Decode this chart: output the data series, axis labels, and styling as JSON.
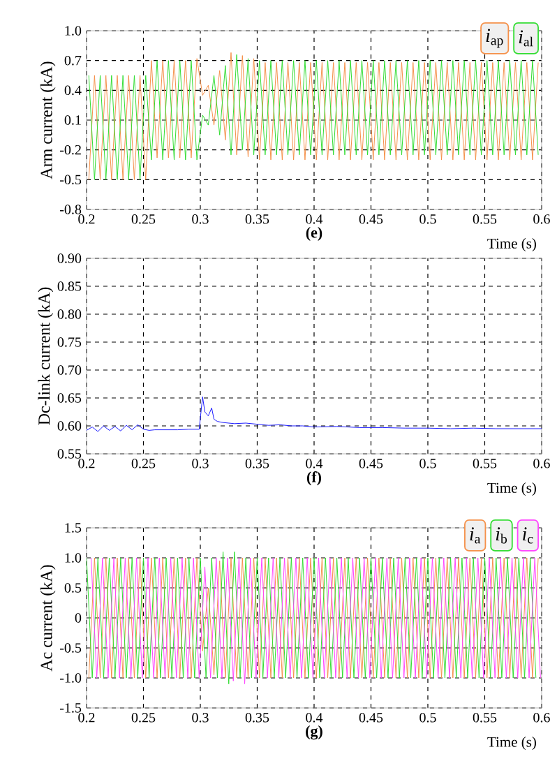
{
  "chart_data": [
    {
      "type": "line",
      "title": "(e)",
      "xlabel": "Time (s)",
      "ylabel": "Arm current (kA)",
      "grid": true,
      "legend": "top right",
      "xlim": [
        0.2,
        0.6
      ],
      "ylim": [
        -0.8,
        1.0
      ],
      "xticks": [
        0.2,
        0.25,
        0.3,
        0.35,
        0.4,
        0.45,
        0.5,
        0.55,
        0.6
      ],
      "yticks": [
        -0.8,
        -0.5,
        -0.2,
        0.1,
        0.4,
        0.7,
        {
          "value": 1.0,
          "label": "1.0"
        }
      ],
      "x": [
        0.202,
        0.207,
        0.212,
        0.217,
        0.222,
        0.227,
        0.232,
        0.237,
        0.242,
        0.247,
        0.252,
        0.257,
        0.262,
        0.267,
        0.272,
        0.277,
        0.282,
        0.287,
        0.292,
        0.297,
        0.302,
        0.307,
        0.312,
        0.317,
        0.322,
        0.327,
        0.332,
        0.337,
        0.342,
        0.347,
        0.352,
        0.357,
        0.362,
        0.367,
        0.372,
        0.377,
        0.382,
        0.387,
        0.392,
        0.397,
        0.402,
        0.407,
        0.412,
        0.417,
        0.422,
        0.427,
        0.432,
        0.437,
        0.442,
        0.447,
        0.452,
        0.457,
        0.462,
        0.467,
        0.472,
        0.477,
        0.482,
        0.487,
        0.492,
        0.497,
        0.502,
        0.507,
        0.512,
        0.517,
        0.522,
        0.527,
        0.532,
        0.537,
        0.542,
        0.547,
        0.552,
        0.557,
        0.562,
        0.567,
        0.572,
        0.577,
        0.582,
        0.587,
        0.592,
        0.597
      ],
      "series": [
        {
          "name": "*i*$_{ap}$",
          "color": "#f5914a",
          "values": [
            -0.5,
            0.55,
            -0.5,
            0.55,
            -0.5,
            0.55,
            -0.5,
            0.55,
            -0.5,
            0.55,
            -0.5,
            0.7,
            -0.28,
            0.7,
            -0.28,
            0.7,
            -0.28,
            0.7,
            -0.28,
            0.72,
            0.35,
            0.45,
            0.05,
            0.6,
            -0.1,
            0.78,
            -0.25,
            0.75,
            -0.27,
            0.72,
            -0.3,
            0.68,
            -0.3,
            0.68,
            -0.3,
            0.68,
            -0.3,
            0.68,
            -0.3,
            0.68,
            -0.3,
            0.68,
            -0.3,
            0.68,
            -0.3,
            0.68,
            -0.3,
            0.68,
            -0.3,
            0.68,
            -0.3,
            0.68,
            -0.3,
            0.68,
            -0.3,
            0.68,
            -0.3,
            0.68,
            -0.3,
            0.68,
            -0.3,
            0.68,
            -0.3,
            0.68,
            -0.3,
            0.68,
            -0.3,
            0.68,
            -0.3,
            0.68,
            -0.3,
            0.68,
            -0.3,
            0.68,
            -0.3,
            0.68,
            -0.3,
            0.68,
            -0.3,
            0.68
          ]
        },
        {
          "name": "*i*$_{al}$",
          "color": "#33dd33",
          "values": [
            0.55,
            -0.5,
            0.55,
            -0.5,
            0.55,
            -0.5,
            0.55,
            -0.5,
            0.55,
            -0.5,
            0.55,
            -0.3,
            0.7,
            -0.3,
            0.7,
            -0.3,
            0.7,
            -0.3,
            0.7,
            -0.3,
            0.15,
            0.05,
            0.55,
            -0.05,
            0.65,
            -0.25,
            0.76,
            -0.2,
            0.72,
            -0.25,
            0.7,
            -0.25,
            0.7,
            -0.25,
            0.7,
            -0.25,
            0.7,
            -0.25,
            0.7,
            -0.25,
            0.7,
            -0.25,
            0.7,
            -0.25,
            0.7,
            -0.25,
            0.7,
            -0.25,
            0.7,
            -0.25,
            0.7,
            -0.25,
            0.7,
            -0.25,
            0.7,
            -0.25,
            0.7,
            -0.25,
            0.7,
            -0.25,
            0.7,
            -0.25,
            0.7,
            -0.25,
            0.7,
            -0.25,
            0.7,
            -0.25,
            0.7,
            -0.25,
            0.7,
            -0.25,
            0.7,
            -0.25,
            0.7,
            -0.25,
            0.7,
            -0.25,
            0.7,
            -0.25
          ]
        }
      ]
    },
    {
      "type": "line",
      "title": "(f)",
      "xlabel": "Time (s)",
      "ylabel": "Dc-link current (kA)",
      "grid": true,
      "xlim": [
        0.2,
        0.6
      ],
      "ylim": [
        0.55,
        0.9
      ],
      "xticks": [
        0.2,
        0.25,
        0.3,
        0.35,
        0.4,
        0.45,
        0.5,
        0.55,
        0.6
      ],
      "yticks": [
        0.55,
        {
          "value": 0.6,
          "label": "0.60"
        },
        0.65,
        {
          "value": 0.7,
          "label": "0.70"
        },
        0.75,
        {
          "value": 0.8,
          "label": "0.80"
        },
        0.85,
        {
          "value": 0.9,
          "label": "0.90"
        }
      ],
      "series": [
        {
          "color": "#1a1aff",
          "x": [
            0.2,
            0.205,
            0.21,
            0.215,
            0.22,
            0.225,
            0.23,
            0.235,
            0.24,
            0.245,
            0.25,
            0.255,
            0.26,
            0.27,
            0.28,
            0.29,
            0.299,
            0.302,
            0.304,
            0.307,
            0.31,
            0.312,
            0.315,
            0.32,
            0.33,
            0.34,
            0.35,
            0.36,
            0.37,
            0.38,
            0.39,
            0.4,
            0.42,
            0.44,
            0.46,
            0.48,
            0.5,
            0.52,
            0.54,
            0.56,
            0.58,
            0.6
          ],
          "values": [
            0.592,
            0.598,
            0.59,
            0.6,
            0.592,
            0.599,
            0.591,
            0.601,
            0.593,
            0.602,
            0.594,
            0.592,
            0.593,
            0.593,
            0.593,
            0.594,
            0.594,
            0.652,
            0.625,
            0.618,
            0.632,
            0.612,
            0.608,
            0.606,
            0.604,
            0.605,
            0.603,
            0.601,
            0.602,
            0.6,
            0.6,
            0.598,
            0.599,
            0.597,
            0.597,
            0.596,
            0.596,
            0.595,
            0.596,
            0.595,
            0.595,
            0.595
          ]
        }
      ]
    },
    {
      "type": "line",
      "title": "(g)",
      "xlabel": "Time (s)",
      "ylabel": "Ac current (kA)",
      "grid": true,
      "legend": "top right",
      "xlim": [
        0.2,
        0.6
      ],
      "ylim": [
        -1.5,
        1.5
      ],
      "xticks": [
        0.2,
        0.25,
        0.3,
        0.35,
        0.4,
        0.45,
        0.5,
        0.55,
        0.6
      ],
      "yticks": [
        -1.5,
        {
          "value": -1.0,
          "label": "-1.0"
        },
        -0.5,
        0,
        0.5,
        {
          "value": 1.0,
          "label": "1.0"
        },
        1.5
      ],
      "series": [
        {
          "name": "*i*$_{a}$",
          "color": "#f5914a",
          "x": [
            0.202,
            0.207,
            0.212,
            0.217,
            0.222,
            0.227,
            0.232,
            0.237,
            0.242,
            0.247,
            0.252,
            0.257,
            0.262,
            0.267,
            0.272,
            0.277,
            0.282,
            0.287,
            0.292,
            0.297,
            0.302,
            0.307,
            0.312,
            0.317,
            0.322,
            0.327,
            0.332,
            0.337,
            0.342,
            0.347,
            0.352,
            0.357,
            0.362,
            0.367,
            0.372,
            0.377,
            0.382,
            0.387,
            0.392,
            0.397,
            0.402,
            0.407,
            0.412,
            0.417,
            0.422,
            0.427,
            0.432,
            0.437,
            0.442,
            0.447,
            0.452,
            0.457,
            0.462,
            0.467,
            0.472,
            0.477,
            0.482,
            0.487,
            0.492,
            0.497,
            0.502,
            0.507,
            0.512,
            0.517,
            0.522,
            0.527,
            0.532,
            0.537,
            0.542,
            0.547,
            0.552,
            0.557,
            0.562,
            0.567,
            0.572,
            0.577,
            0.582,
            0.587,
            0.592,
            0.597
          ],
          "values": [
            -1,
            1,
            -1,
            1,
            -1,
            1,
            -1,
            1,
            -1,
            1,
            -1,
            1,
            -1,
            1,
            -1,
            1,
            -1,
            1,
            -1,
            1,
            -0.55,
            0.5,
            -0.95,
            0.95,
            -1,
            1,
            -1,
            1,
            -1,
            1,
            -1,
            1,
            -1,
            1,
            -1,
            1,
            -1,
            1,
            -1,
            1,
            -1,
            1,
            -1,
            1,
            -1,
            1,
            -1,
            1,
            -1,
            1,
            -1,
            1,
            -1,
            1,
            -1,
            1,
            -1,
            1,
            -1,
            1,
            -1,
            1,
            -1,
            1,
            -1,
            1,
            -1,
            1,
            -1,
            1,
            -1,
            1,
            -1,
            1,
            -1,
            1,
            -1,
            1,
            -1,
            1
          ]
        },
        {
          "name": "*i*$_{b}$",
          "color": "#33dd33",
          "x": [
            0.2,
            0.205,
            0.21,
            0.215,
            0.22,
            0.225,
            0.23,
            0.235,
            0.24,
            0.245,
            0.25,
            0.255,
            0.26,
            0.265,
            0.27,
            0.275,
            0.28,
            0.285,
            0.29,
            0.295,
            0.3,
            0.305,
            0.31,
            0.315,
            0.32,
            0.325,
            0.33,
            0.335,
            0.34,
            0.345,
            0.35,
            0.355,
            0.36,
            0.365,
            0.37,
            0.375,
            0.38,
            0.385,
            0.39,
            0.395,
            0.4,
            0.405,
            0.41,
            0.415,
            0.42,
            0.425,
            0.43,
            0.435,
            0.44,
            0.445,
            0.45,
            0.455,
            0.46,
            0.465,
            0.47,
            0.475,
            0.48,
            0.485,
            0.49,
            0.495,
            0.5,
            0.505,
            0.51,
            0.515,
            0.52,
            0.525,
            0.53,
            0.535,
            0.54,
            0.545,
            0.55,
            0.555,
            0.56,
            0.565,
            0.57,
            0.575,
            0.58,
            0.585,
            0.59,
            0.595
          ],
          "values": [
            1,
            -1,
            1,
            -1,
            1,
            -1,
            1,
            -1,
            1,
            -1,
            1,
            -1,
            1,
            -1,
            1,
            -1,
            1,
            -1,
            1,
            -1,
            1,
            -1,
            1,
            -1,
            1.1,
            -1.1,
            1.1,
            -1,
            1,
            -1,
            1,
            -1,
            1,
            -1,
            1,
            -1,
            1,
            -1,
            1,
            -1,
            1,
            -1,
            1,
            -1,
            1,
            -1,
            1,
            -1,
            1,
            -1,
            1,
            -1,
            1,
            -1,
            1,
            -1,
            1,
            -1,
            1,
            -1,
            1,
            -1,
            1,
            -1,
            1,
            -1,
            1,
            -1,
            1,
            -1,
            1,
            -1,
            1,
            -1,
            1,
            -1,
            1,
            -1,
            1,
            -1
          ]
        },
        {
          "name": "*i*$_{c}$",
          "color": "#ff44ff",
          "x": [
            0.204,
            0.209,
            0.214,
            0.219,
            0.224,
            0.229,
            0.234,
            0.239,
            0.244,
            0.249,
            0.254,
            0.259,
            0.264,
            0.269,
            0.274,
            0.279,
            0.284,
            0.289,
            0.294,
            0.299,
            0.304,
            0.309,
            0.314,
            0.319,
            0.324,
            0.329,
            0.334,
            0.339,
            0.344,
            0.349,
            0.354,
            0.359,
            0.364,
            0.369,
            0.374,
            0.379,
            0.384,
            0.389,
            0.394,
            0.399,
            0.404,
            0.409,
            0.414,
            0.419,
            0.424,
            0.429,
            0.434,
            0.439,
            0.444,
            0.449,
            0.454,
            0.459,
            0.464,
            0.469,
            0.474,
            0.479,
            0.484,
            0.489,
            0.494,
            0.499,
            0.504,
            0.509,
            0.514,
            0.519,
            0.524,
            0.529,
            0.534,
            0.539,
            0.544,
            0.549,
            0.554,
            0.559,
            0.564,
            0.569,
            0.574,
            0.579,
            0.584,
            0.589,
            0.594,
            0.599
          ],
          "values": [
            1,
            -1,
            1,
            -1,
            1,
            -1,
            1,
            -1,
            1,
            -1,
            1,
            -1,
            1,
            -1,
            1,
            -1,
            1,
            -1,
            1,
            -1,
            0.85,
            -1,
            1,
            -1,
            1,
            -1.05,
            1,
            -1.1,
            1,
            -1,
            1,
            -1,
            1,
            -1,
            1,
            -1,
            1,
            -1,
            1,
            -1,
            1,
            -1,
            1,
            -1,
            1,
            -1,
            1,
            -1,
            1,
            -1,
            1,
            -1,
            1,
            -1,
            1,
            -1,
            1,
            -1,
            1,
            -1,
            1,
            -1,
            1,
            -1,
            1,
            -1,
            1,
            -1,
            1,
            -1,
            1,
            -1,
            1,
            -1,
            1,
            -1,
            1,
            -1,
            1,
            -1
          ]
        }
      ]
    }
  ]
}
